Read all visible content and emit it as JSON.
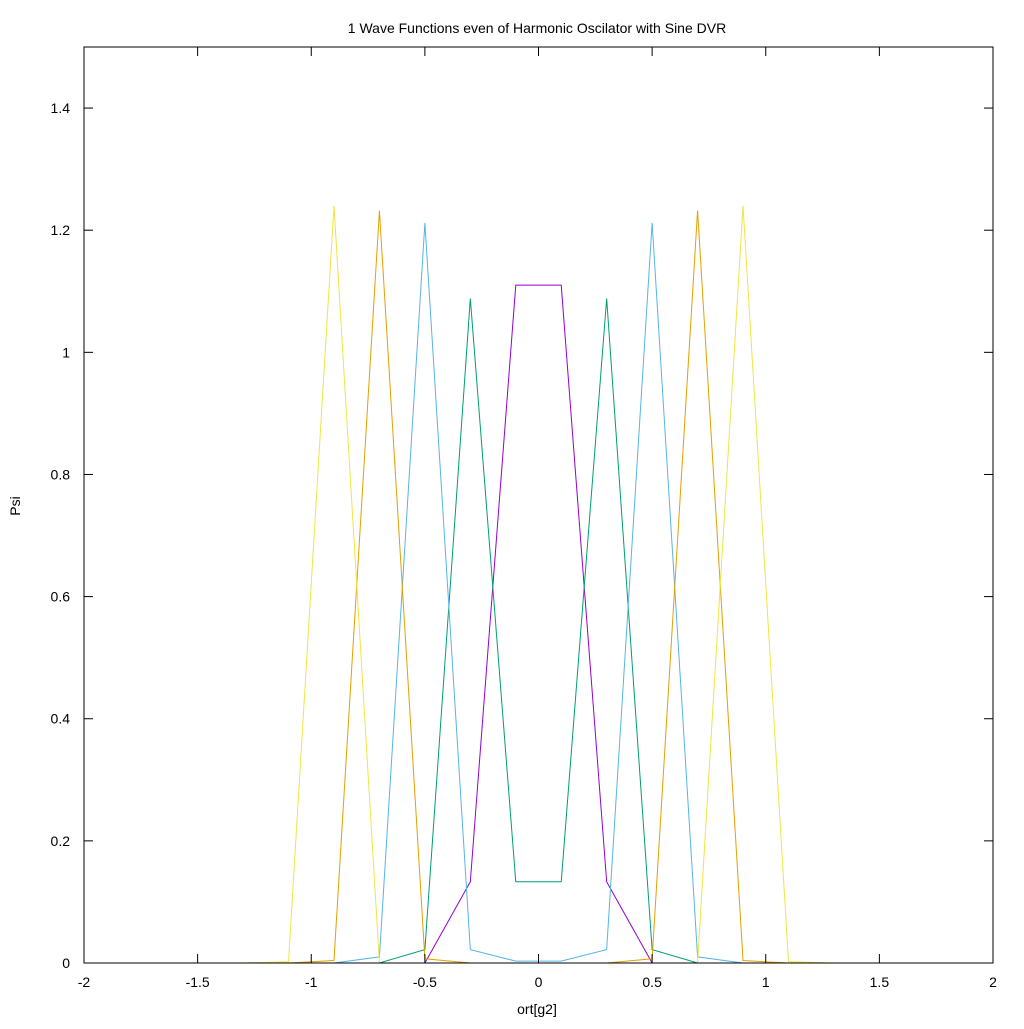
{
  "chart_data": {
    "type": "line",
    "title": "1 Wave Functions even of Harmonic Oscilator with Sine DVR",
    "xlabel": "ort[g2]",
    "ylabel": "Psi",
    "xlim": [
      -2,
      2
    ],
    "ylim": [
      0,
      1.5
    ],
    "xticks": [
      -2,
      -1.5,
      -1,
      -0.5,
      0,
      0.5,
      1,
      1.5,
      2
    ],
    "xtick_labels": [
      "-2",
      "-1.5",
      "-1",
      "-0.5",
      "0",
      "0.5",
      "1",
      "1.5",
      "2"
    ],
    "yticks": [
      0,
      0.2,
      0.4,
      0.6,
      0.8,
      1,
      1.2,
      1.4
    ],
    "ytick_labels": [
      "0",
      "0.2",
      "0.4",
      "0.6",
      "0.8",
      "1",
      "1.2",
      "1.4"
    ],
    "grid": false,
    "legend": "none",
    "series": [
      {
        "color": "#9400d3",
        "x": [
          -0.5,
          -0.3,
          -0.1,
          0.1,
          0.3,
          0.5
        ],
        "y": [
          0,
          0.133,
          1.11,
          1.11,
          0.133,
          0
        ]
      },
      {
        "color": "#009e73",
        "x": [
          -0.7,
          -0.5,
          -0.3,
          -0.1,
          0.1,
          0.3,
          0.5,
          0.7
        ],
        "y": [
          0,
          0.022,
          1.088,
          0.133,
          0.133,
          1.088,
          0.022,
          0
        ]
      },
      {
        "color": "#56b4e9",
        "x": [
          -0.9,
          -0.7,
          -0.5,
          -0.3,
          -0.1,
          0.1,
          0.3,
          0.5,
          0.7,
          0.9
        ],
        "y": [
          0,
          0.01,
          1.212,
          0.022,
          0.003,
          0.003,
          0.022,
          1.212,
          0.01,
          0
        ]
      },
      {
        "color": "#e69f00",
        "x": [
          -1.1,
          -0.9,
          -0.7,
          -0.5,
          -0.3,
          0.3,
          0.5,
          0.7,
          0.9,
          1.1
        ],
        "y": [
          0,
          0.004,
          1.232,
          0.007,
          0,
          0,
          0.007,
          1.232,
          0.004,
          0
        ]
      },
      {
        "color": "#f0e442",
        "x": [
          -1.3,
          -1.1,
          -0.9,
          -0.7,
          0.7,
          0.9,
          1.1,
          1.3
        ],
        "y": [
          0,
          0.002,
          1.24,
          0,
          0,
          1.24,
          0.002,
          0
        ]
      }
    ]
  }
}
